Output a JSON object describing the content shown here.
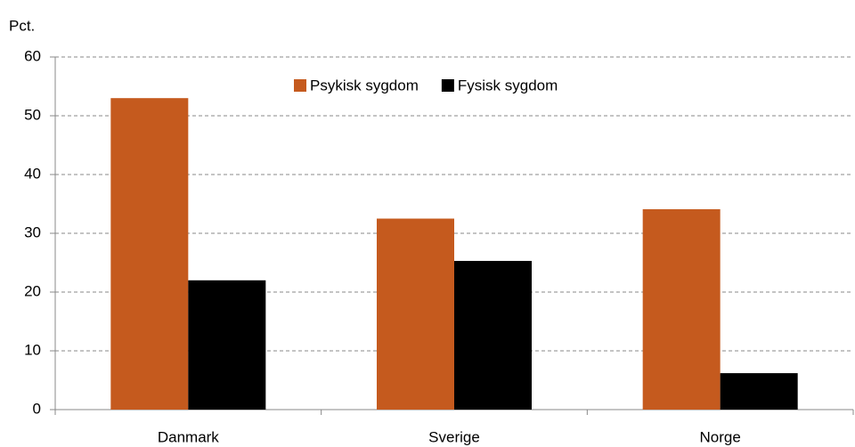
{
  "chart_data": {
    "type": "bar",
    "y_label": "Pct.",
    "categories": [
      "Danmark",
      "Sverige",
      "Norge"
    ],
    "series": [
      {
        "name": "Psykisk sygdom",
        "color": "#c55a1e",
        "values": [
          53,
          32.5,
          34.1
        ]
      },
      {
        "name": "Fysisk sygdom",
        "color": "#000000",
        "values": [
          22,
          25.3,
          6.2
        ]
      }
    ],
    "ylim": [
      0,
      60
    ],
    "yticks": [
      0,
      10,
      20,
      30,
      40,
      50,
      60
    ],
    "grid": true,
    "legend": "top"
  }
}
